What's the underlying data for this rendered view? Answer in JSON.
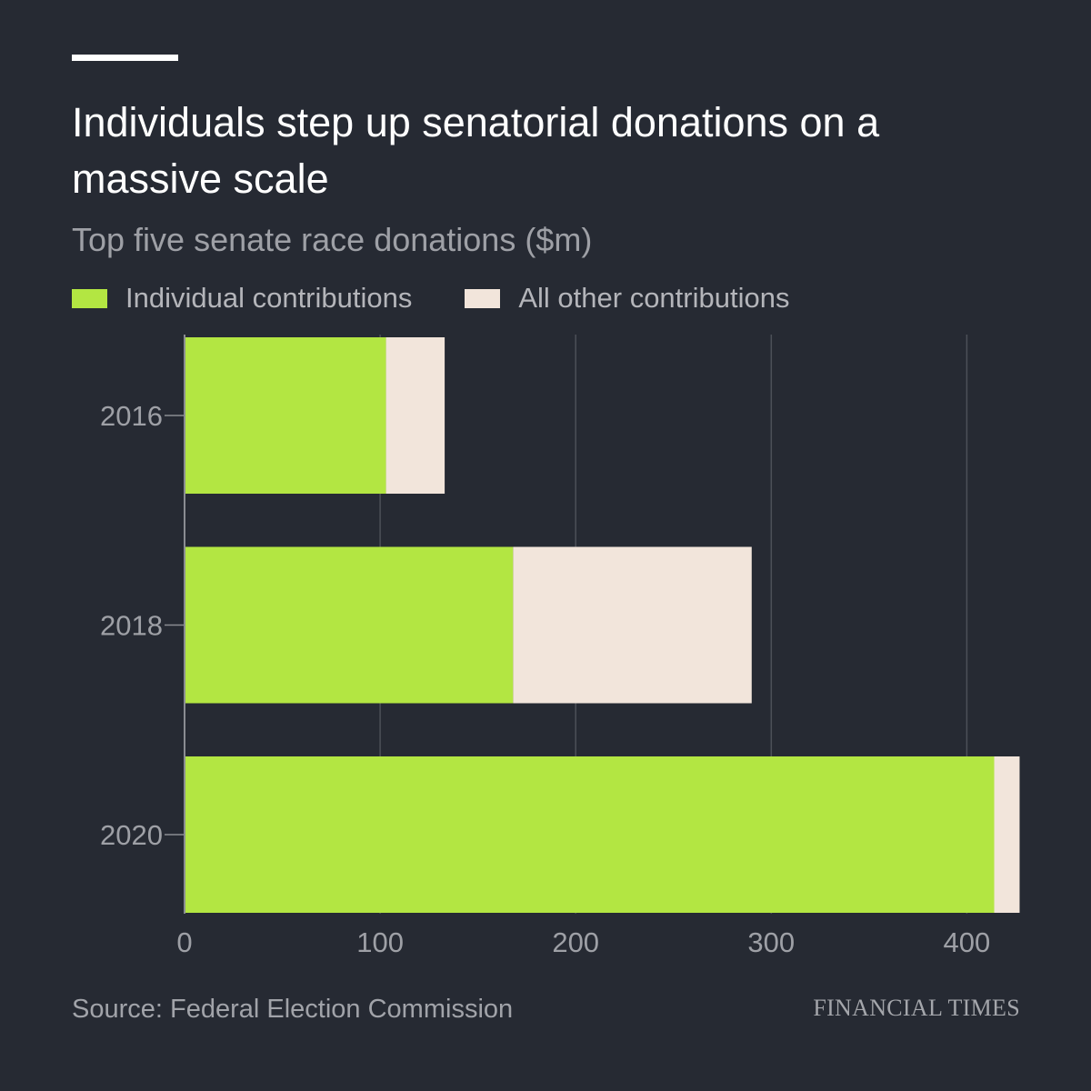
{
  "header": {
    "title": "Individuals step up senatorial donations on a massive scale",
    "subtitle": "Top five senate race donations ($m)"
  },
  "legend": [
    {
      "label": "Individual contributions",
      "color": "#b3e642"
    },
    {
      "label": "All other contributions",
      "color": "#f2e5db"
    }
  ],
  "footer": {
    "source": "Source: Federal Election Commission",
    "brand": "FINANCIAL TIMES"
  },
  "chart_data": {
    "type": "bar",
    "orientation": "horizontal",
    "stacked": true,
    "categories": [
      "2016",
      "2018",
      "2020"
    ],
    "series": [
      {
        "name": "Individual contributions",
        "values": [
          103,
          168,
          414
        ],
        "color": "#b3e642"
      },
      {
        "name": "All other contributions",
        "values": [
          30,
          122,
          13
        ],
        "color": "#f2e5db"
      }
    ],
    "xlim": [
      0,
      427
    ],
    "xticks": [
      0,
      100,
      200,
      300,
      400
    ],
    "grid": true,
    "legend_position": "top-left"
  }
}
